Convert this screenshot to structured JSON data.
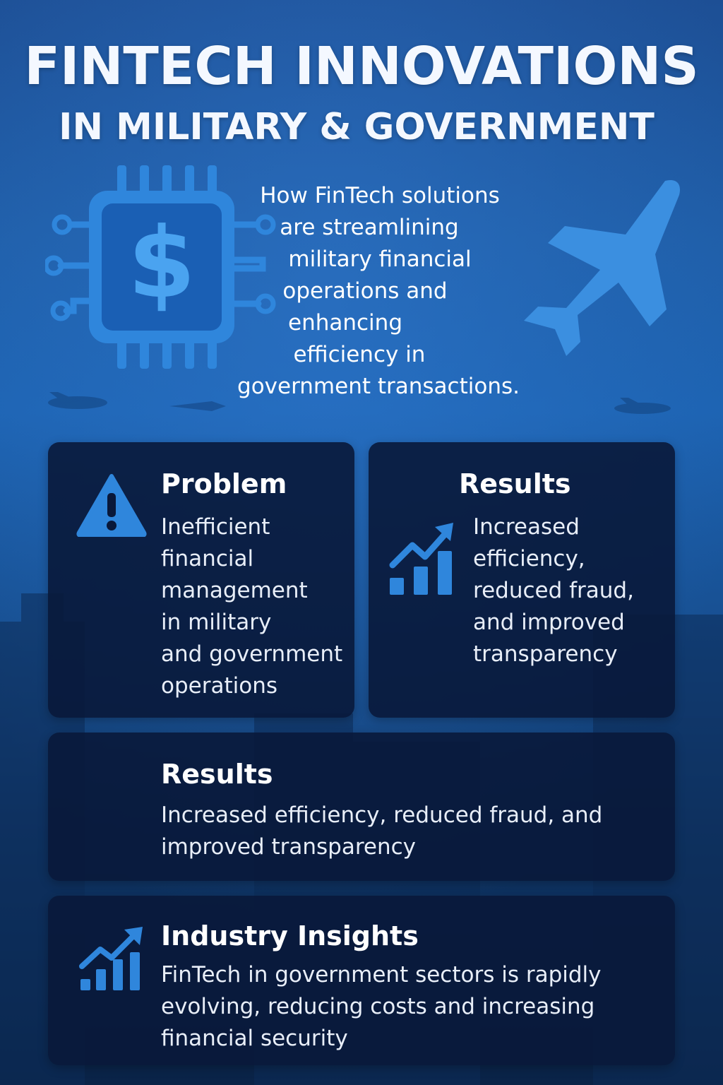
{
  "header": {
    "title": "FINTECH INNOVATIONS",
    "subtitle": "IN MILITARY & GOVERNMENT"
  },
  "intro": {
    "lines": [
      "How FinTech solutions",
      "are streamlining",
      "military financial",
      "operations and",
      "enhancing",
      "efficiency in",
      "government transactions."
    ]
  },
  "icons": {
    "chip": "dollar-chip-icon",
    "plane": "airplane-icon",
    "warning": "warning-icon",
    "growth": "bar-chart-growth-icon"
  },
  "colors": {
    "background_top": "#1d4f95",
    "background_bottom": "#0a2347",
    "card": "#09183a",
    "accent": "#2f86dc"
  },
  "problem": {
    "title": "Problem",
    "lines": [
      "Inefficient",
      "financial",
      "management",
      "in military",
      "and government",
      "operations"
    ]
  },
  "results_top": {
    "title": "Results",
    "lines": [
      "Increased",
      "efficiency,",
      "reduced fraud,",
      "and improved",
      "transparency"
    ]
  },
  "results_wide": {
    "title": "Results",
    "lines": [
      "Increased efficiency, reduced fraud, and",
      "improved transparency"
    ]
  },
  "insights": {
    "title": "Industry Insights",
    "lines": [
      "FinTech in government sectors is rapidly",
      "evolving, reducing costs and increasing",
      "financial security"
    ]
  }
}
